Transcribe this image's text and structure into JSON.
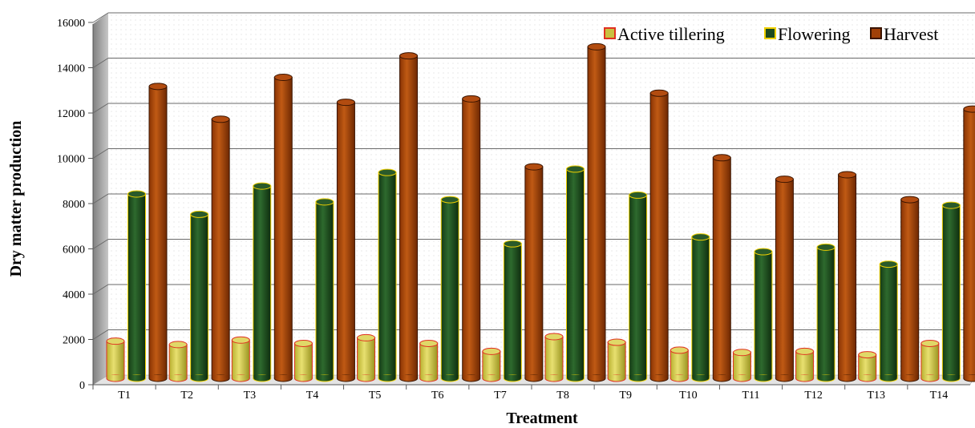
{
  "chart_data": {
    "type": "bar",
    "style": "3d-cylinder",
    "categories": [
      "T1",
      "T2",
      "T3",
      "T4",
      "T5",
      "T6",
      "T7",
      "T8",
      "T9",
      "T10",
      "T11",
      "T12",
      "T13",
      "T14"
    ],
    "series": [
      {
        "name": "Active tillering",
        "color": "#c8c040",
        "edge": "#e03020",
        "values": [
          1500,
          1350,
          1550,
          1400,
          1650,
          1400,
          1050,
          1700,
          1450,
          1100,
          1000,
          1050,
          900,
          1400
        ]
      },
      {
        "name": "Flowering",
        "color": "#1e4a1e",
        "edge": "#f0d000",
        "values": [
          8000,
          7100,
          8350,
          7650,
          8950,
          7750,
          5800,
          9100,
          7950,
          6100,
          5450,
          5650,
          4900,
          7500
        ]
      },
      {
        "name": "Harvest",
        "color": "#a04008",
        "edge": "#3a1400",
        "values": [
          12750,
          11300,
          13150,
          12050,
          14100,
          12200,
          9200,
          14500,
          12450,
          9600,
          8650,
          8850,
          7750,
          11750
        ]
      }
    ],
    "xlabel": "Treatment",
    "ylabel": "Dry matter production",
    "ylim": [
      0,
      16000
    ],
    "yticks": [
      0,
      2000,
      4000,
      6000,
      8000,
      10000,
      12000,
      14000,
      16000
    ],
    "grid": true,
    "legend_position": "top-right"
  }
}
